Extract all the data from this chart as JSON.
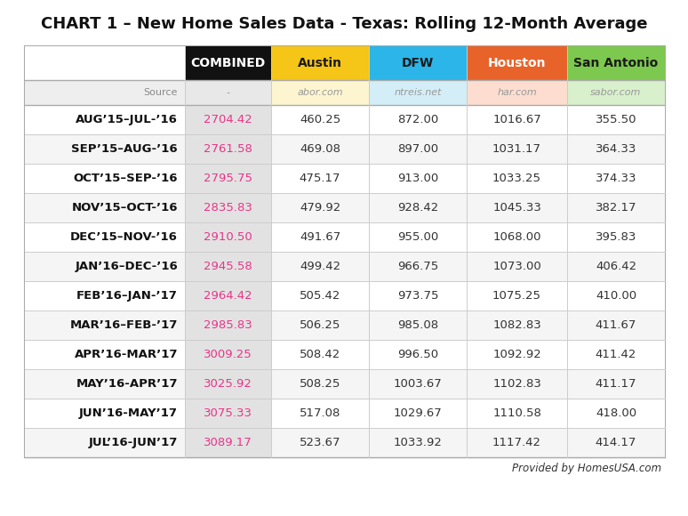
{
  "title": "CHART 1 – New Home Sales Data - Texas: Rolling 12-Month Average",
  "header_labels": [
    "COMBINED",
    "Austin",
    "DFW",
    "Houston",
    "San Antonio"
  ],
  "header_colors": [
    "#111111",
    "#f5c518",
    "#2bb5e8",
    "#e8632a",
    "#7dc84e"
  ],
  "header_text_colors": [
    "#ffffff",
    "#1a1a1a",
    "#1a1a1a",
    "#ffffff",
    "#1a1a1a"
  ],
  "source_labels": [
    "-",
    "abor.com",
    "ntreis.net",
    "har.com",
    "sabor.com"
  ],
  "source_col_bg": [
    "#e8e8e8",
    "#fdf5d0",
    "#d4eef8",
    "#fcddd0",
    "#d8f0cc"
  ],
  "rows": [
    [
      "AUG’15–JUL-’16",
      "2704.42",
      "460.25",
      "872.00",
      "1016.67",
      "355.50"
    ],
    [
      "SEP’15–AUG-’16",
      "2761.58",
      "469.08",
      "897.00",
      "1031.17",
      "364.33"
    ],
    [
      "OCT’15–SEP-’16",
      "2795.75",
      "475.17",
      "913.00",
      "1033.25",
      "374.33"
    ],
    [
      "NOV’15–OCT-’16",
      "2835.83",
      "479.92",
      "928.42",
      "1045.33",
      "382.17"
    ],
    [
      "DEC’15–NOV-’16",
      "2910.50",
      "491.67",
      "955.00",
      "1068.00",
      "395.83"
    ],
    [
      "JAN’16–DEC-’16",
      "2945.58",
      "499.42",
      "966.75",
      "1073.00",
      "406.42"
    ],
    [
      "FEB’16–JAN-’17",
      "2964.42",
      "505.42",
      "973.75",
      "1075.25",
      "410.00"
    ],
    [
      "MAR’16–FEB-’17",
      "2985.83",
      "506.25",
      "985.08",
      "1082.83",
      "411.67"
    ],
    [
      "APR’16-MAR’17",
      "3009.25",
      "508.42",
      "996.50",
      "1092.92",
      "411.42"
    ],
    [
      "MAY’16-APR’17",
      "3025.92",
      "508.25",
      "1003.67",
      "1102.83",
      "411.17"
    ],
    [
      "JUN’16-MAY’17",
      "3075.33",
      "517.08",
      "1029.67",
      "1110.58",
      "418.00"
    ],
    [
      "JUL’16-JUN’17",
      "3089.17",
      "523.67",
      "1033.92",
      "1117.42",
      "414.17"
    ]
  ],
  "footer_text": "Provided by HomesUSA.com",
  "combined_color": "#e8358a",
  "row_bg_white": "#ffffff",
  "row_bg_grey": "#f5f5f5",
  "combined_bg": "#e2e2e2",
  "border_color": "#cccccc",
  "outer_border": "#aaaaaa",
  "title_fontsize": 13,
  "header_fontsize": 10,
  "source_fontsize": 8,
  "data_fontsize": 9.5,
  "row_label_fontsize": 9.5
}
